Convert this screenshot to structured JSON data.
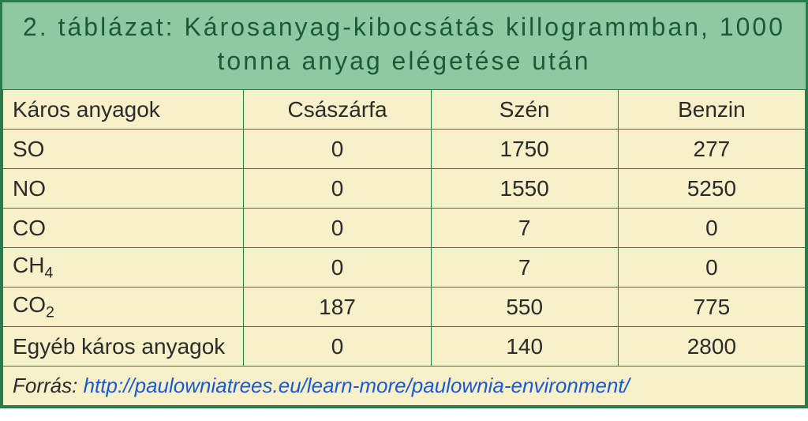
{
  "table": {
    "type": "table",
    "title": "2. táblázat: Károsanyag-kibocsátás killogrammban, 1000 tonna anyag elégetése után",
    "columns": [
      "Káros anyagok",
      "Császárfa",
      "Szén",
      "Benzin"
    ],
    "rows": [
      {
        "label": "SO",
        "sub": "",
        "values": [
          "0",
          "1750",
          "277"
        ]
      },
      {
        "label": "NO",
        "sub": "",
        "values": [
          "0",
          "1550",
          "5250"
        ]
      },
      {
        "label": "CO",
        "sub": "",
        "values": [
          "0",
          "7",
          "0"
        ]
      },
      {
        "label": "CH",
        "sub": "4",
        "values": [
          "0",
          "7",
          "0"
        ]
      },
      {
        "label": "CO",
        "sub": "2",
        "values": [
          "187",
          "550",
          "775"
        ]
      },
      {
        "label": "Egyéb káros anyagok",
        "sub": "",
        "values": [
          "0",
          "140",
          "2800"
        ]
      }
    ],
    "footer_label": "Forrás: ",
    "footer_link": "http://paulowniatrees.eu/learn-more/paulownia-environment/",
    "colors": {
      "border": "#2a7a4a",
      "title_bg": "#8fc9a3",
      "title_text": "#1a5a38",
      "header_bg": "#f7f0c8",
      "cell_bg": "#f7f0c8",
      "cell_text": "#2b2b2b",
      "link": "#1a5ad6"
    },
    "fontsize": {
      "title": 32,
      "header": 28,
      "cell": 28,
      "footer": 26
    },
    "column_align": [
      "left",
      "center",
      "center",
      "center"
    ],
    "column_widths": [
      "30%",
      "23.3%",
      "23.3%",
      "23.3%"
    ]
  }
}
